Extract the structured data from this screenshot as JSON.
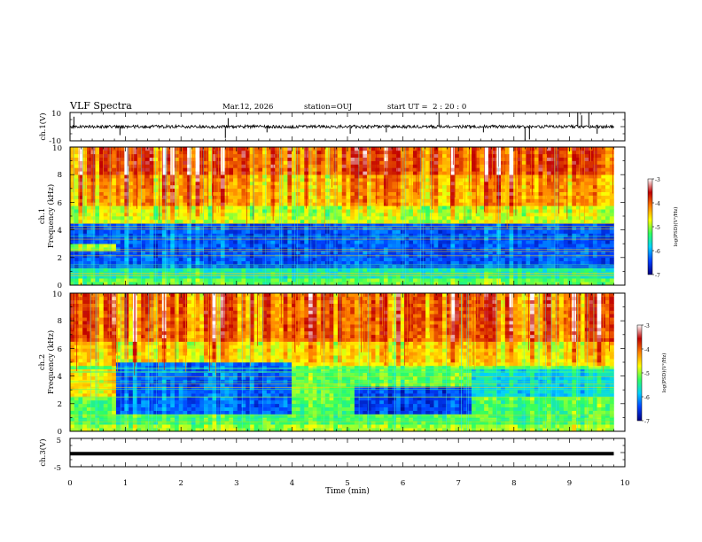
{
  "header": {
    "title": "VLF Spectra",
    "date": "Mar.12, 2026",
    "station": "station=OUJ",
    "start_ut": "start UT =  2 : 20 : 0"
  },
  "chart_data": [
    {
      "type": "line",
      "panel": "ch1-waveform",
      "ylabel": "ch.1(V)",
      "yticks": [
        "10",
        "-10"
      ],
      "ylim": [
        -10,
        10
      ],
      "xlim": [
        0,
        10
      ],
      "data_end_min": 9.8,
      "baseline": 0,
      "spikes": [
        {
          "x": 0.07,
          "y": 7
        },
        {
          "x": 0.9,
          "y": -6
        },
        {
          "x": 2.8,
          "y": -8
        },
        {
          "x": 2.85,
          "y": 6
        },
        {
          "x": 3.55,
          "y": -4
        },
        {
          "x": 5.05,
          "y": -5
        },
        {
          "x": 5.7,
          "y": -4
        },
        {
          "x": 6.65,
          "y": 10
        },
        {
          "x": 7.45,
          "y": -4
        },
        {
          "x": 8.2,
          "y": -10
        },
        {
          "x": 8.28,
          "y": -9
        },
        {
          "x": 9.15,
          "y": 10
        },
        {
          "x": 9.22,
          "y": 8
        },
        {
          "x": 9.35,
          "y": 10
        },
        {
          "x": 9.5,
          "y": -5
        }
      ]
    },
    {
      "type": "heatmap",
      "panel": "ch1-spectrogram",
      "ylabel": "ch.1\nFrequency (kHz)",
      "yticks": [
        "0",
        "2",
        "4",
        "6",
        "8",
        "10"
      ],
      "ylim": [
        0,
        10
      ],
      "xlim": [
        0,
        10
      ],
      "data_end_min": 9.8,
      "colorbar": {
        "label": "log(PSD)(V²/Hz)",
        "ticks": [
          "-3",
          "-4",
          "-5",
          "-6",
          "-7"
        ],
        "range": [
          -7,
          -3
        ],
        "colors": [
          "#000080",
          "#0040ff",
          "#00d0ff",
          "#30ff60",
          "#ffff00",
          "#ff8000",
          "#c00000",
          "#ffffff"
        ]
      },
      "bands": [
        {
          "f0": 0,
          "f1": 0.4,
          "level": -5.2
        },
        {
          "f0": 0.4,
          "f1": 1.2,
          "level": -5.6
        },
        {
          "f0": 1.2,
          "f1": 4.6,
          "level": -6.4
        },
        {
          "f0": 4.6,
          "f1": 5.8,
          "level": -4.9
        },
        {
          "f0": 5.8,
          "f1": 8.0,
          "level": -4.4
        },
        {
          "f0": 8.0,
          "f1": 10,
          "level": -4.0
        }
      ],
      "segments": [
        {
          "t0": 0.0,
          "t1": 0.8,
          "f0": 2.4,
          "f1": 3.0,
          "level": -5.0
        }
      ]
    },
    {
      "type": "heatmap",
      "panel": "ch2-spectrogram",
      "ylabel": "ch.2\nFrequency (kHz)",
      "yticks": [
        "0",
        "2",
        "4",
        "6",
        "8",
        "10"
      ],
      "ylim": [
        0,
        10
      ],
      "xlim": [
        0,
        10
      ],
      "data_end_min": 9.8,
      "colorbar": {
        "label": "log(PSD)(V²/Hz)",
        "ticks": [
          "-3",
          "-4",
          "-5",
          "-6",
          "-7"
        ],
        "range": [
          -7,
          -3
        ],
        "colors": [
          "#000080",
          "#0040ff",
          "#00d0ff",
          "#30ff60",
          "#ffff00",
          "#ff8000",
          "#c00000",
          "#ffffff"
        ]
      },
      "bands": [
        {
          "f0": 0,
          "f1": 0.4,
          "level": -5.0
        },
        {
          "f0": 0.4,
          "f1": 2.2,
          "level": -5.3
        },
        {
          "f0": 2.2,
          "f1": 4.8,
          "level": -5.2
        },
        {
          "f0": 4.8,
          "f1": 6.5,
          "level": -4.6
        },
        {
          "f0": 6.5,
          "f1": 10,
          "level": -4.1
        }
      ],
      "segments": [
        {
          "t0": 0.8,
          "t1": 4.0,
          "f0": 1.2,
          "f1": 5.0,
          "level": -6.3
        },
        {
          "t0": 5.15,
          "t1": 7.2,
          "f0": 1.2,
          "f1": 3.2,
          "level": -6.5
        },
        {
          "t0": 7.2,
          "t1": 9.8,
          "f0": 2.6,
          "f1": 4.6,
          "level": -5.8
        },
        {
          "t0": 0.0,
          "t1": 0.8,
          "f0": 2.4,
          "f1": 4.6,
          "level": -4.7
        }
      ]
    },
    {
      "type": "line",
      "panel": "ch3-waveform",
      "ylabel": "ch.3(V)",
      "yticks": [
        "5",
        "-5"
      ],
      "ylim": [
        -5,
        5
      ],
      "xlim": [
        0,
        10
      ],
      "data_end_min": 9.8,
      "baseline": -0.4,
      "xlabel": "Time (min)",
      "xticks": [
        "0",
        "1",
        "2",
        "3",
        "4",
        "5",
        "6",
        "7",
        "8",
        "9",
        "10"
      ]
    }
  ]
}
